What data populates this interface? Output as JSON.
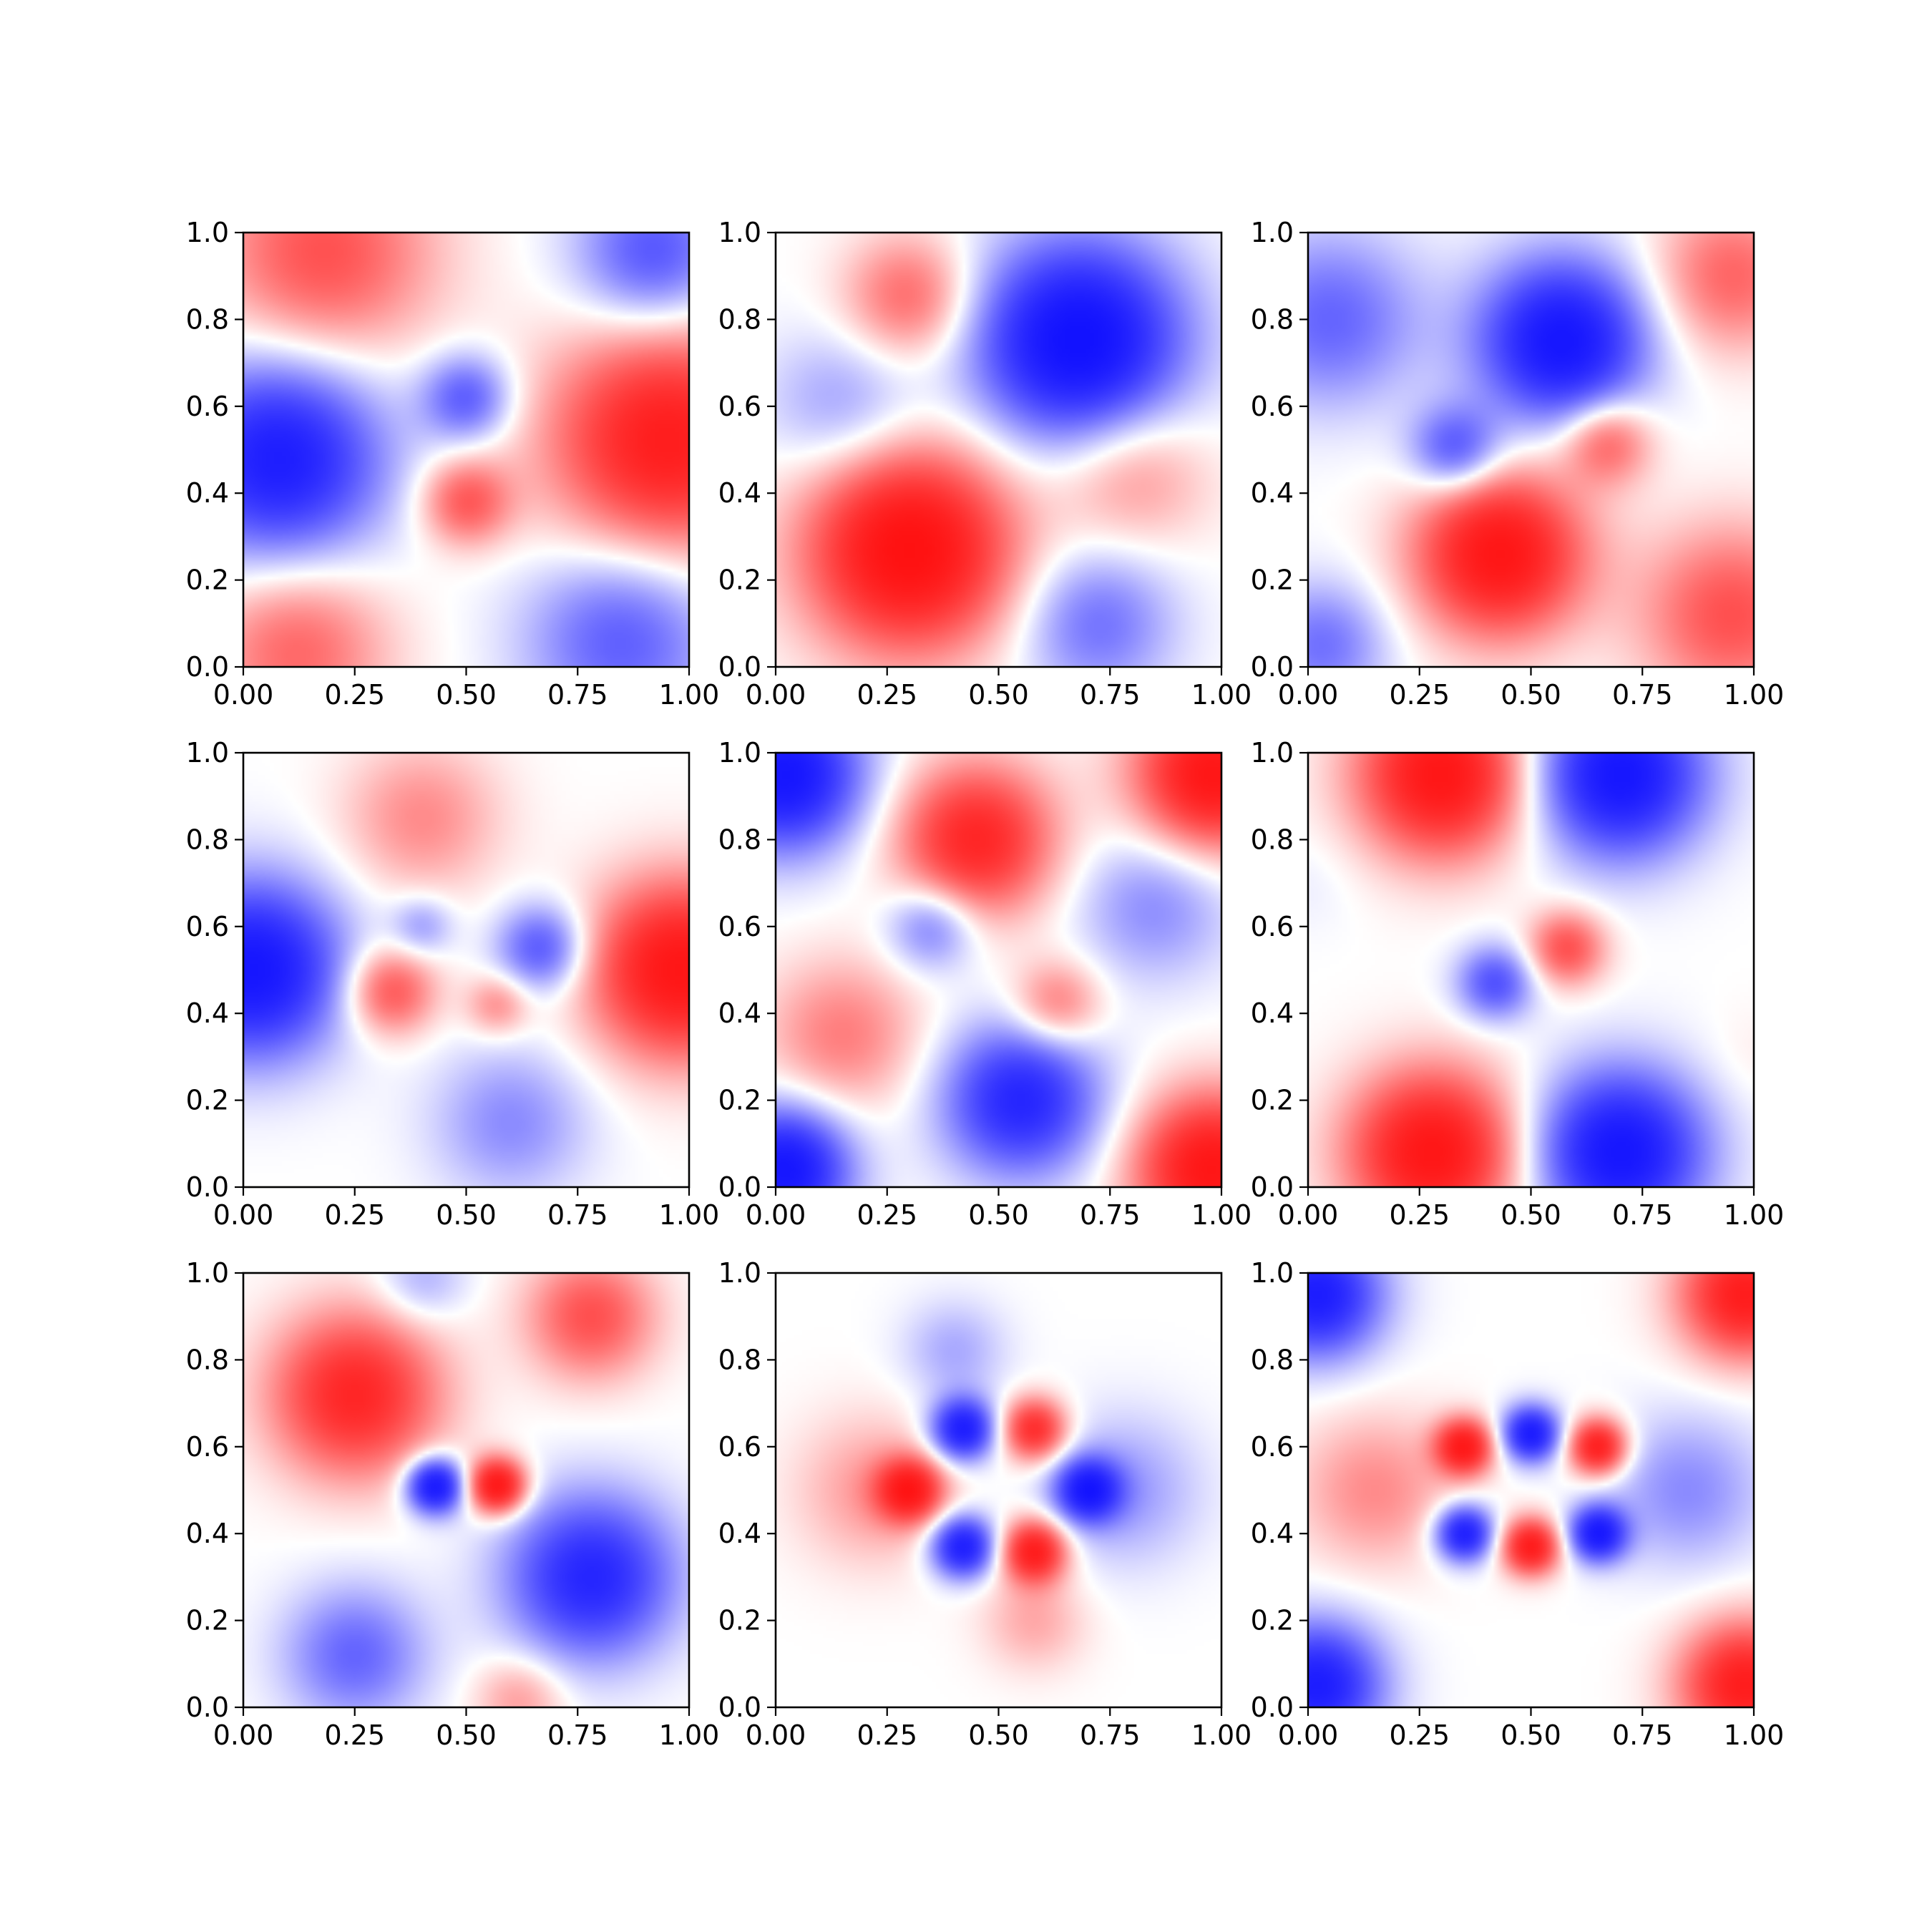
{
  "colors": {
    "negative": "#0000ff",
    "zero": "#ffffff",
    "positive": "#ff0000",
    "axes": "#000000"
  },
  "chart_data": [
    {
      "type": "heatmap",
      "colormap": "bwr",
      "grid": false,
      "xlim": [
        0,
        1
      ],
      "ylim": [
        0,
        1
      ],
      "xticks": [
        "0.00",
        "0.25",
        "0.50",
        "0.75",
        "1.00"
      ],
      "yticks": [
        "0.0",
        "0.2",
        "0.4",
        "0.6",
        "0.8",
        "1.0"
      ],
      "field": {
        "kind": "blobs",
        "blobs": [
          {
            "x": 0.08,
            "y": 0.48,
            "a": -1.0,
            "s": 0.16
          },
          {
            "x": 0.95,
            "y": 0.52,
            "a": 1.0,
            "s": 0.18
          },
          {
            "x": 0.5,
            "y": 0.62,
            "a": -0.55,
            "s": 0.07
          },
          {
            "x": 0.5,
            "y": 0.38,
            "a": 0.55,
            "s": 0.07
          },
          {
            "x": 0.18,
            "y": 0.95,
            "a": 0.6,
            "s": 0.17
          },
          {
            "x": 0.92,
            "y": 0.95,
            "a": -0.6,
            "s": 0.12
          },
          {
            "x": 0.12,
            "y": 0.04,
            "a": 0.5,
            "s": 0.14
          },
          {
            "x": 0.85,
            "y": 0.07,
            "a": -0.55,
            "s": 0.15
          }
        ]
      }
    },
    {
      "type": "heatmap",
      "colormap": "bwr",
      "grid": false,
      "xlim": [
        0,
        1
      ],
      "ylim": [
        0,
        1
      ],
      "xticks": [
        "0.00",
        "0.25",
        "0.50",
        "0.75",
        "1.00"
      ],
      "yticks": [
        "0.0",
        "0.2",
        "0.4",
        "0.6",
        "0.8",
        "1.0"
      ],
      "field": {
        "kind": "blobs",
        "blobs": [
          {
            "x": 0.68,
            "y": 0.75,
            "a": -1.2,
            "s": 0.16
          },
          {
            "x": 0.3,
            "y": 0.27,
            "a": 1.2,
            "s": 0.16
          },
          {
            "x": 0.3,
            "y": 0.85,
            "a": 0.5,
            "s": 0.1
          },
          {
            "x": 0.15,
            "y": 0.6,
            "a": -0.3,
            "s": 0.12
          },
          {
            "x": 0.8,
            "y": 0.45,
            "a": 0.35,
            "s": 0.12
          },
          {
            "x": 0.72,
            "y": 0.1,
            "a": -0.45,
            "s": 0.12
          }
        ]
      }
    },
    {
      "type": "heatmap",
      "colormap": "bwr",
      "grid": false,
      "xlim": [
        0,
        1
      ],
      "ylim": [
        0,
        1
      ],
      "xticks": [
        "0.00",
        "0.25",
        "0.50",
        "0.75",
        "1.00"
      ],
      "yticks": [
        "0.0",
        "0.2",
        "0.4",
        "0.6",
        "0.8",
        "1.0"
      ],
      "field": {
        "kind": "blobs",
        "blobs": [
          {
            "x": 0.57,
            "y": 0.75,
            "a": -1.1,
            "s": 0.13
          },
          {
            "x": 0.43,
            "y": 0.26,
            "a": 1.1,
            "s": 0.13
          },
          {
            "x": 0.33,
            "y": 0.5,
            "a": -0.6,
            "s": 0.07
          },
          {
            "x": 0.67,
            "y": 0.52,
            "a": 0.55,
            "s": 0.07
          },
          {
            "x": 0.05,
            "y": 0.8,
            "a": -0.5,
            "s": 0.14
          },
          {
            "x": 0.95,
            "y": 0.12,
            "a": 0.6,
            "s": 0.14
          },
          {
            "x": 0.95,
            "y": 0.9,
            "a": 0.5,
            "s": 0.12
          },
          {
            "x": 0.03,
            "y": 0.05,
            "a": -0.45,
            "s": 0.1
          }
        ]
      }
    },
    {
      "type": "heatmap",
      "colormap": "bwr",
      "grid": false,
      "xlim": [
        0,
        1
      ],
      "ylim": [
        0,
        1
      ],
      "xticks": [
        "0.00",
        "0.25",
        "0.50",
        "0.75",
        "1.00"
      ],
      "yticks": [
        "0.0",
        "0.2",
        "0.4",
        "0.6",
        "0.8",
        "1.0"
      ],
      "field": {
        "kind": "blobs",
        "blobs": [
          {
            "x": 0.02,
            "y": 0.5,
            "a": -1.1,
            "s": 0.14
          },
          {
            "x": 0.98,
            "y": 0.5,
            "a": 1.1,
            "s": 0.14
          },
          {
            "x": 0.33,
            "y": 0.45,
            "a": 0.6,
            "s": 0.07
          },
          {
            "x": 0.67,
            "y": 0.55,
            "a": -0.6,
            "s": 0.07
          },
          {
            "x": 0.4,
            "y": 0.6,
            "a": -0.3,
            "s": 0.05
          },
          {
            "x": 0.57,
            "y": 0.42,
            "a": 0.35,
            "s": 0.05
          },
          {
            "x": 0.4,
            "y": 0.85,
            "a": 0.35,
            "s": 0.12
          },
          {
            "x": 0.6,
            "y": 0.15,
            "a": -0.35,
            "s": 0.12
          }
        ]
      }
    },
    {
      "type": "heatmap",
      "colormap": "bwr",
      "grid": false,
      "xlim": [
        0,
        1
      ],
      "ylim": [
        0,
        1
      ],
      "xticks": [
        "0.00",
        "0.25",
        "0.50",
        "0.75",
        "1.00"
      ],
      "yticks": [
        "0.0",
        "0.2",
        "0.4",
        "0.6",
        "0.8",
        "1.0"
      ],
      "field": {
        "kind": "blobs",
        "blobs": [
          {
            "x": 0.02,
            "y": 0.95,
            "a": -1.1,
            "s": 0.12
          },
          {
            "x": 0.98,
            "y": 0.95,
            "a": 1.1,
            "s": 0.12
          },
          {
            "x": 0.02,
            "y": 0.04,
            "a": -1.1,
            "s": 0.1
          },
          {
            "x": 0.98,
            "y": 0.04,
            "a": 1.1,
            "s": 0.12
          },
          {
            "x": 0.45,
            "y": 0.8,
            "a": 0.9,
            "s": 0.12
          },
          {
            "x": 0.55,
            "y": 0.2,
            "a": -0.9,
            "s": 0.12
          },
          {
            "x": 0.35,
            "y": 0.6,
            "a": -0.45,
            "s": 0.07
          },
          {
            "x": 0.63,
            "y": 0.42,
            "a": 0.45,
            "s": 0.07
          },
          {
            "x": 0.15,
            "y": 0.35,
            "a": 0.4,
            "s": 0.12
          },
          {
            "x": 0.85,
            "y": 0.65,
            "a": -0.35,
            "s": 0.12
          }
        ]
      }
    },
    {
      "type": "heatmap",
      "colormap": "bwr",
      "grid": false,
      "xlim": [
        0,
        1
      ],
      "ylim": [
        0,
        1
      ],
      "xticks": [
        "0.00",
        "0.25",
        "0.50",
        "0.75",
        "1.00"
      ],
      "yticks": [
        "0.0",
        "0.2",
        "0.4",
        "0.6",
        "0.8",
        "1.0"
      ],
      "field": {
        "kind": "blobs",
        "blobs": [
          {
            "x": 0.3,
            "y": 0.95,
            "a": 1.1,
            "s": 0.13
          },
          {
            "x": 0.7,
            "y": 0.95,
            "a": -1.1,
            "s": 0.13
          },
          {
            "x": 0.28,
            "y": 0.08,
            "a": 1.1,
            "s": 0.13
          },
          {
            "x": 0.7,
            "y": 0.08,
            "a": -1.1,
            "s": 0.13
          },
          {
            "x": 0.42,
            "y": 0.47,
            "a": -0.6,
            "s": 0.06
          },
          {
            "x": 0.58,
            "y": 0.55,
            "a": 0.6,
            "s": 0.06
          },
          {
            "x": 0.0,
            "y": 0.7,
            "a": -0.05,
            "s": 0.08
          },
          {
            "x": 1.0,
            "y": 0.3,
            "a": 0.05,
            "s": 0.08
          }
        ]
      }
    },
    {
      "type": "heatmap",
      "colormap": "bwr",
      "grid": false,
      "xlim": [
        0,
        1
      ],
      "ylim": [
        0,
        1
      ],
      "xticks": [
        "0.00",
        "0.25",
        "0.50",
        "0.75",
        "1.00"
      ],
      "yticks": [
        "0.0",
        "0.2",
        "0.4",
        "0.6",
        "0.8",
        "1.0"
      ],
      "field": {
        "kind": "blobs",
        "blobs": [
          {
            "x": 0.43,
            "y": 0.51,
            "a": -1.1,
            "s": 0.045
          },
          {
            "x": 0.57,
            "y": 0.51,
            "a": 1.1,
            "s": 0.045
          },
          {
            "x": 0.25,
            "y": 0.72,
            "a": 0.9,
            "s": 0.13
          },
          {
            "x": 0.78,
            "y": 0.3,
            "a": -0.9,
            "s": 0.13
          },
          {
            "x": 0.78,
            "y": 0.9,
            "a": 0.6,
            "s": 0.1
          },
          {
            "x": 0.25,
            "y": 0.12,
            "a": -0.5,
            "s": 0.11
          },
          {
            "x": 0.62,
            "y": 0.02,
            "a": 0.3,
            "s": 0.07
          },
          {
            "x": 0.4,
            "y": 0.98,
            "a": -0.25,
            "s": 0.07
          }
        ]
      }
    },
    {
      "type": "heatmap",
      "colormap": "bwr",
      "grid": false,
      "xlim": [
        0,
        1
      ],
      "ylim": [
        0,
        1
      ],
      "xticks": [
        "0.00",
        "0.25",
        "0.50",
        "0.75",
        "1.00"
      ],
      "yticks": [
        "0.0",
        "0.2",
        "0.4",
        "0.6",
        "0.8",
        "1.0"
      ],
      "field": {
        "kind": "blobs",
        "blobs": [
          {
            "x": 0.42,
            "y": 0.64,
            "a": -1.0,
            "s": 0.05
          },
          {
            "x": 0.58,
            "y": 0.64,
            "a": 0.85,
            "s": 0.05
          },
          {
            "x": 0.42,
            "y": 0.37,
            "a": -1.0,
            "s": 0.05
          },
          {
            "x": 0.58,
            "y": 0.36,
            "a": 1.0,
            "s": 0.05
          },
          {
            "x": 0.3,
            "y": 0.5,
            "a": 0.9,
            "s": 0.05
          },
          {
            "x": 0.7,
            "y": 0.5,
            "a": -0.9,
            "s": 0.05
          },
          {
            "x": 0.22,
            "y": 0.5,
            "a": 0.3,
            "s": 0.12
          },
          {
            "x": 0.78,
            "y": 0.5,
            "a": -0.3,
            "s": 0.12
          },
          {
            "x": 0.4,
            "y": 0.82,
            "a": -0.25,
            "s": 0.08
          },
          {
            "x": 0.58,
            "y": 0.2,
            "a": 0.25,
            "s": 0.08
          }
        ]
      }
    },
    {
      "type": "heatmap",
      "colormap": "bwr",
      "grid": false,
      "xlim": [
        0,
        1
      ],
      "ylim": [
        0,
        1
      ],
      "xticks": [
        "0.00",
        "0.25",
        "0.50",
        "0.75",
        "1.00"
      ],
      "yticks": [
        "0.0",
        "0.2",
        "0.4",
        "0.6",
        "0.8",
        "1.0"
      ],
      "field": {
        "kind": "blobs",
        "blobs": [
          {
            "x": 0.35,
            "y": 0.6,
            "a": 1.0,
            "s": 0.045
          },
          {
            "x": 0.5,
            "y": 0.63,
            "a": -1.0,
            "s": 0.045
          },
          {
            "x": 0.65,
            "y": 0.6,
            "a": 1.0,
            "s": 0.045
          },
          {
            "x": 0.35,
            "y": 0.4,
            "a": -1.0,
            "s": 0.045
          },
          {
            "x": 0.5,
            "y": 0.37,
            "a": 1.0,
            "s": 0.045
          },
          {
            "x": 0.65,
            "y": 0.4,
            "a": -1.0,
            "s": 0.045
          },
          {
            "x": 0.02,
            "y": 0.95,
            "a": -1.0,
            "s": 0.1
          },
          {
            "x": 0.98,
            "y": 0.95,
            "a": 1.0,
            "s": 0.1
          },
          {
            "x": 0.02,
            "y": 0.05,
            "a": -1.0,
            "s": 0.1
          },
          {
            "x": 0.98,
            "y": 0.05,
            "a": 1.0,
            "s": 0.1
          },
          {
            "x": 0.15,
            "y": 0.5,
            "a": 0.35,
            "s": 0.12
          },
          {
            "x": 0.85,
            "y": 0.5,
            "a": -0.35,
            "s": 0.12
          }
        ]
      }
    }
  ]
}
